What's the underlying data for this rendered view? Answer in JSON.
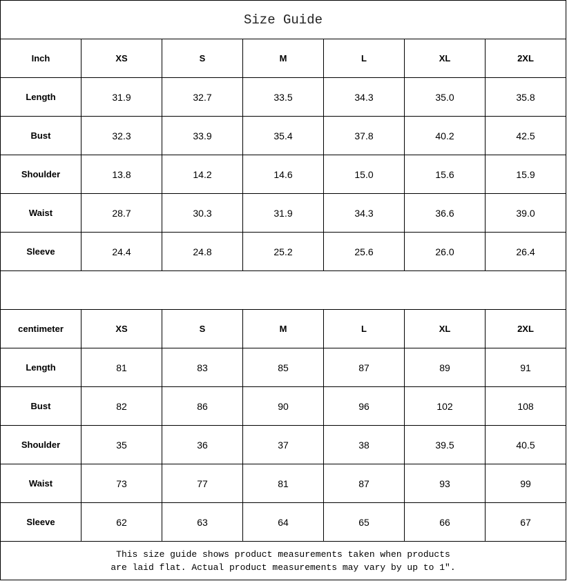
{
  "title": "Size Guide",
  "sizes": [
    "XS",
    "S",
    "M",
    "L",
    "XL",
    "2XL"
  ],
  "inch": {
    "unit_label": "Inch",
    "rows": [
      {
        "label": "Length",
        "values": [
          "31.9",
          "32.7",
          "33.5",
          "34.3",
          "35.0",
          "35.8"
        ]
      },
      {
        "label": "Bust",
        "values": [
          "32.3",
          "33.9",
          "35.4",
          "37.8",
          "40.2",
          "42.5"
        ]
      },
      {
        "label": "Shoulder",
        "values": [
          "13.8",
          "14.2",
          "14.6",
          "15.0",
          "15.6",
          "15.9"
        ]
      },
      {
        "label": "Waist",
        "values": [
          "28.7",
          "30.3",
          "31.9",
          "34.3",
          "36.6",
          "39.0"
        ]
      },
      {
        "label": "Sleeve",
        "values": [
          "24.4",
          "24.8",
          "25.2",
          "25.6",
          "26.0",
          "26.4"
        ]
      }
    ]
  },
  "centimeter": {
    "unit_label": "centimeter",
    "rows": [
      {
        "label": "Length",
        "values": [
          "81",
          "83",
          "85",
          "87",
          "89",
          "91"
        ]
      },
      {
        "label": "Bust",
        "values": [
          "82",
          "86",
          "90",
          "96",
          "102",
          "108"
        ]
      },
      {
        "label": "Shoulder",
        "values": [
          "35",
          "36",
          "37",
          "38",
          "39.5",
          "40.5"
        ]
      },
      {
        "label": "Waist",
        "values": [
          "73",
          "77",
          "81",
          "87",
          "93",
          "99"
        ]
      },
      {
        "label": "Sleeve",
        "values": [
          "62",
          "63",
          "64",
          "65",
          "66",
          "67"
        ]
      }
    ]
  },
  "note_line1": "This size guide shows product measurements taken when products",
  "note_line2": "are laid flat. Actual product measurements may vary by up to 1″."
}
